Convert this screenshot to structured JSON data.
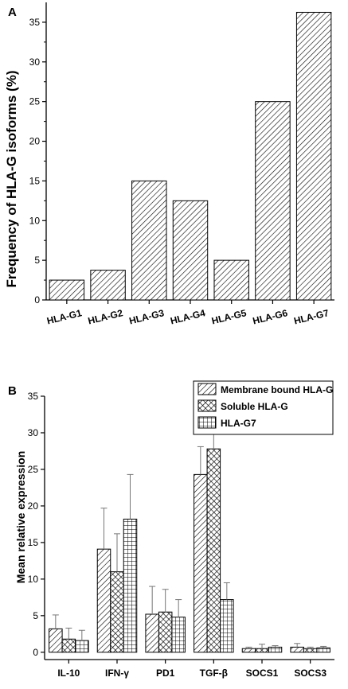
{
  "chart_data": [
    {
      "panel_label": "A",
      "type": "bar",
      "categories": [
        "HLA-G1",
        "HLA-G2",
        "HLA-G3",
        "HLA-G4",
        "HLA-G5",
        "HLA-G6",
        "HLA-G7"
      ],
      "values": [
        2.5,
        3.75,
        15,
        12.5,
        5,
        25,
        36.25
      ],
      "ylabel": "Frequency of HLA-G isoforms (%)",
      "xlabel": "",
      "ylim": [
        0,
        37.5
      ],
      "yticks": [
        0,
        5,
        10,
        15,
        20,
        25,
        30,
        35
      ],
      "grid": false,
      "fill_pattern": "diagonal-hatch"
    },
    {
      "panel_label": "B",
      "type": "bar",
      "categories": [
        "IL-10",
        "IFN-γ",
        "PD1",
        "TGF-β",
        "SOCS1",
        "SOCS3"
      ],
      "series": [
        {
          "name": "Membrane bound HLA-G",
          "pattern": "diagonal-hatch",
          "values": [
            3.2,
            14.1,
            5.2,
            24.3,
            0.5,
            0.7
          ],
          "errors": [
            1.9,
            5.6,
            3.8,
            3.8,
            0.2,
            0.5
          ]
        },
        {
          "name": "Soluble HLA-G",
          "pattern": "crosshatch",
          "values": [
            1.8,
            11.0,
            5.5,
            27.8,
            0.5,
            0.5
          ],
          "errors": [
            1.5,
            5.2,
            3.1,
            4.2,
            0.6,
            0.2
          ]
        },
        {
          "name": "HLA-G7",
          "pattern": "grid",
          "values": [
            1.6,
            18.2,
            4.8,
            7.2,
            0.7,
            0.6
          ],
          "errors": [
            1.4,
            6.1,
            2.4,
            2.3,
            0.2,
            0.2
          ]
        }
      ],
      "ylabel": "Mean relative expression",
      "xlabel": "",
      "ylim": [
        -1,
        35
      ],
      "yticks": [
        0,
        5,
        10,
        15,
        20,
        25,
        30,
        35
      ],
      "grid": false,
      "legend": "top-right"
    }
  ]
}
